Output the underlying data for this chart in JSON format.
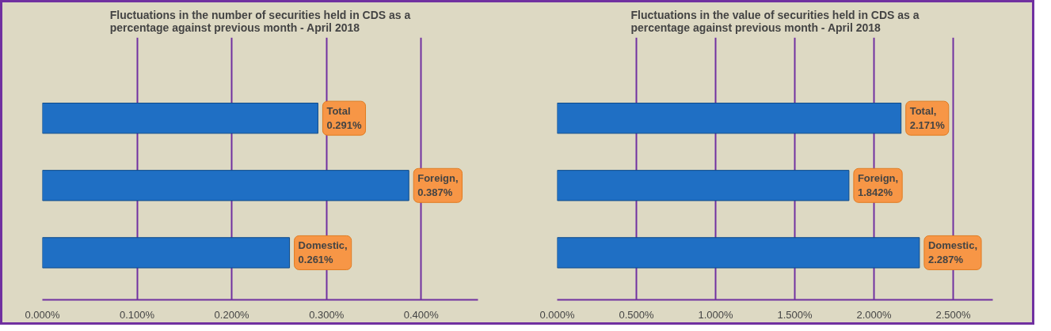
{
  "chart_data": [
    {
      "type": "bar",
      "orientation": "horizontal",
      "title": "Fluctuations in the number of securities held in CDS as a\npercentage against previous month - April 2018",
      "categories": [
        null,
        null,
        null
      ],
      "values": [
        0.291,
        0.387,
        0.261
      ],
      "value_labels": [
        "Total\n0.291%",
        "Foreign,\n0.387%",
        "Domestic,\n0.261%"
      ],
      "color": "#1f6fc4",
      "xlim": [
        0,
        0.46
      ],
      "xticks": [
        {
          "value": 0,
          "label": "0.000%"
        },
        {
          "value": 0.1,
          "label": "0.100%"
        },
        {
          "value": 0.2,
          "label": "0.200%"
        },
        {
          "value": 0.3,
          "label": "0.300%"
        },
        {
          "value": 0.4,
          "label": "0.400%"
        }
      ],
      "grid": "x"
    },
    {
      "type": "bar",
      "orientation": "horizontal",
      "title": "Fluctuations in the value of securities held in CDS as a\npercentage against previous month - April 2018",
      "categories": [
        null,
        null,
        null
      ],
      "values": [
        2.171,
        1.842,
        2.287
      ],
      "value_labels": [
        "Total,\n2.171%",
        "Foreign,\n1.842%",
        "Domestic,\n2.287%"
      ],
      "color": "#1f6fc4",
      "xlim": [
        0,
        2.75
      ],
      "xticks": [
        {
          "value": 0,
          "label": "0.000%"
        },
        {
          "value": 0.5,
          "label": "0.500%"
        },
        {
          "value": 1,
          "label": "1.000%"
        },
        {
          "value": 1.5,
          "label": "1.500%"
        },
        {
          "value": 2,
          "label": "2.000%"
        },
        {
          "value": 2.5,
          "label": "2.500%"
        }
      ],
      "grid": "x"
    }
  ]
}
